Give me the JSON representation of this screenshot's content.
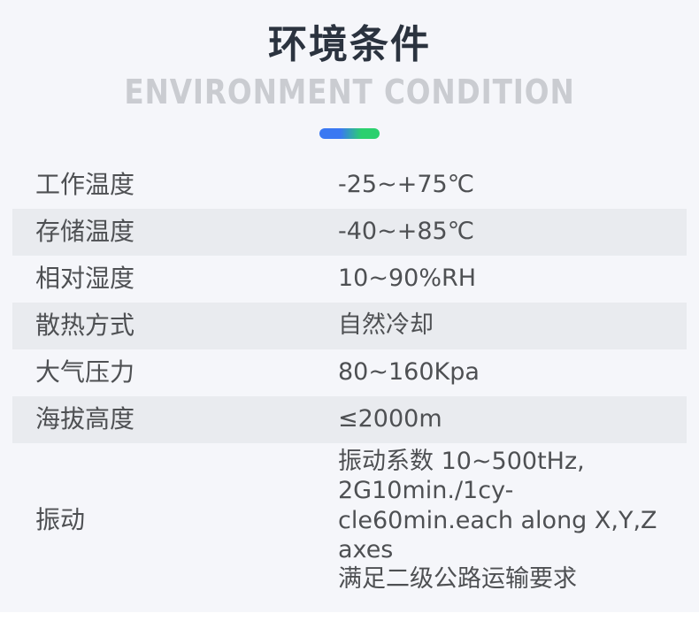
{
  "header": {
    "title": "环境条件",
    "subtitle": "ENVIRONMENT CONDITION"
  },
  "accent": {
    "bar_gradient_start": "#3a78f2",
    "bar_gradient_end": "#2bd06e"
  },
  "colors": {
    "page_background": "#f5f6fa",
    "stripe_row_background": "#e9ebef",
    "title_text": "#2b333f",
    "subtitle_text": "#caccd1",
    "body_text": "#4e5053"
  },
  "table": {
    "rows": [
      {
        "label": "工作温度",
        "value": "-25~+75℃"
      },
      {
        "label": "存储温度",
        "value": "-40~+85℃"
      },
      {
        "label": "相对湿度",
        "value": "10~90%RH"
      },
      {
        "label": "散热方式",
        "value": "自然冷却"
      },
      {
        "label": "大气压力",
        "value": "80~160Kpa"
      },
      {
        "label": "海拔高度",
        "value": "≤2000m"
      },
      {
        "label": "振动",
        "value": "振动系数 10~500tHz,\n2G10min./1cy-\ncle60min.each along X,Y,Z\naxes\n满足二级公路运输要求"
      }
    ]
  }
}
